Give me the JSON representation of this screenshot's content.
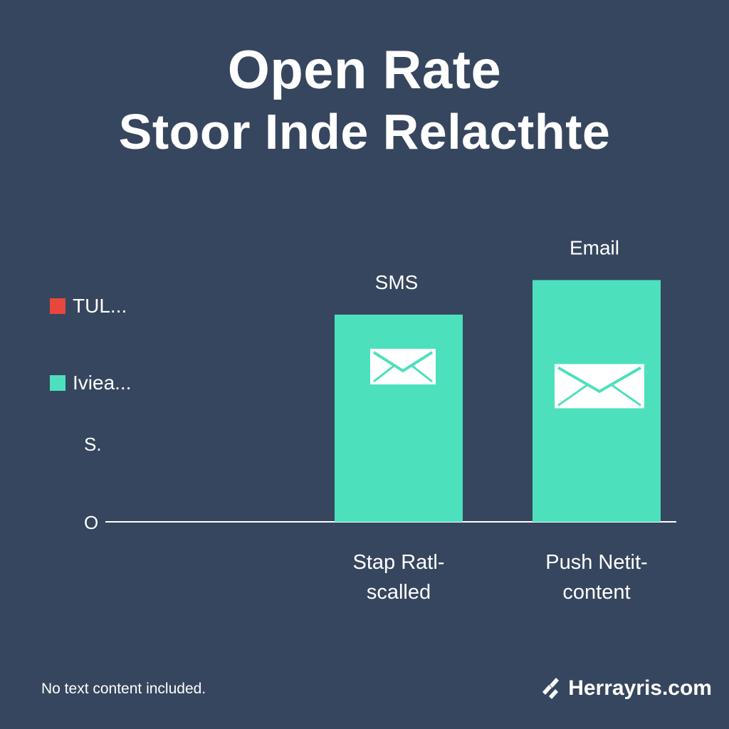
{
  "title": {
    "line1": "Open Rate",
    "line2": "Stoor Inde Relacthte"
  },
  "legend": [
    {
      "label": "TUL...",
      "color": "#e8473e"
    },
    {
      "label": "Iviea...",
      "color": "#4de0bd"
    }
  ],
  "chart_data": {
    "type": "bar",
    "categories": [
      "Stap Ratl-\nscalled",
      "Push Netit-\ncontent"
    ],
    "top_labels": [
      "SMS",
      "Email"
    ],
    "series": [
      {
        "values": [
          6.6,
          7.7
        ],
        "color": "#4de0bd"
      }
    ],
    "y_tick_labels": [
      "O",
      "S."
    ],
    "y_tick_values": [
      0,
      2.5
    ],
    "ylim": [
      0,
      10
    ],
    "bar_icons": [
      "envelope-icon",
      "envelope-icon"
    ],
    "grid": false
  },
  "footnote": "No text content included.",
  "brand": {
    "name": "Herrayris.com",
    "icon": "double-s-logo-icon"
  }
}
